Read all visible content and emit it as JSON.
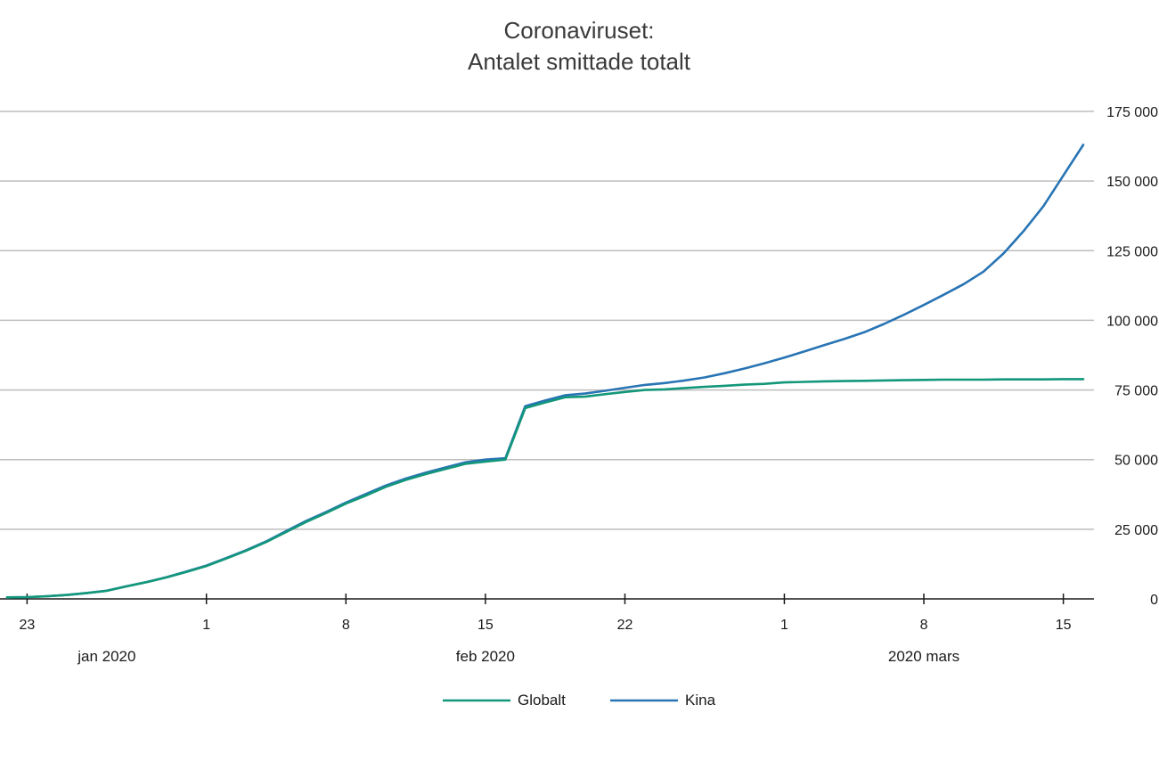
{
  "chart_data": {
    "type": "line",
    "title": [
      "Coronaviruset:",
      "Antalet smittade totalt"
    ],
    "ylim": [
      0,
      175000
    ],
    "yticks": [
      {
        "value": 0,
        "label": "0"
      },
      {
        "value": 25000,
        "label": "25 000"
      },
      {
        "value": 50000,
        "label": "50 000"
      },
      {
        "value": 75000,
        "label": "75 000"
      },
      {
        "value": 100000,
        "label": "100 000"
      },
      {
        "value": 125000,
        "label": "125 000"
      },
      {
        "value": 150000,
        "label": "150 000"
      },
      {
        "value": 175000,
        "label": "175 000"
      }
    ],
    "grid": true,
    "x_range": [
      "2020-01-22",
      "2020-03-16"
    ],
    "xticks": [
      {
        "date": "2020-01-23",
        "label": "23"
      },
      {
        "date": "2020-02-01",
        "label": "1"
      },
      {
        "date": "2020-02-08",
        "label": "8"
      },
      {
        "date": "2020-02-15",
        "label": "15"
      },
      {
        "date": "2020-02-22",
        "label": "22"
      },
      {
        "date": "2020-03-01",
        "label": "1"
      },
      {
        "date": "2020-03-08",
        "label": "8"
      },
      {
        "date": "2020-03-15",
        "label": "15"
      }
    ],
    "month_labels": [
      {
        "date": "2020-01-27",
        "label": "jan 2020"
      },
      {
        "date": "2020-02-15",
        "label": "feb 2020"
      },
      {
        "date": "2020-03-08",
        "label": "2020 mars"
      }
    ],
    "legend_placement": "bottom-center",
    "x": [
      "2020-01-22",
      "2020-01-23",
      "2020-01-24",
      "2020-01-25",
      "2020-01-26",
      "2020-01-27",
      "2020-01-28",
      "2020-01-29",
      "2020-01-30",
      "2020-01-31",
      "2020-02-01",
      "2020-02-02",
      "2020-02-03",
      "2020-02-04",
      "2020-02-05",
      "2020-02-06",
      "2020-02-07",
      "2020-02-08",
      "2020-02-09",
      "2020-02-10",
      "2020-02-11",
      "2020-02-12",
      "2020-02-13",
      "2020-02-14",
      "2020-02-15",
      "2020-02-16",
      "2020-02-17",
      "2020-02-18",
      "2020-02-19",
      "2020-02-20",
      "2020-02-21",
      "2020-02-22",
      "2020-02-23",
      "2020-02-24",
      "2020-02-25",
      "2020-02-26",
      "2020-02-27",
      "2020-02-28",
      "2020-02-29",
      "2020-03-01",
      "2020-03-02",
      "2020-03-03",
      "2020-03-04",
      "2020-03-05",
      "2020-03-06",
      "2020-03-07",
      "2020-03-08",
      "2020-03-09",
      "2020-03-10",
      "2020-03-11",
      "2020-03-12",
      "2020-03-13",
      "2020-03-14",
      "2020-03-15",
      "2020-03-16"
    ],
    "series": [
      {
        "name": "Globalt",
        "color": "#13977a",
        "values": [
          540,
          640,
          920,
          1400,
          2100,
          2900,
          4500,
          6000,
          7700,
          9700,
          11800,
          14500,
          17300,
          20400,
          24000,
          27600,
          30800,
          34200,
          37100,
          40200,
          42700,
          44800,
          46600,
          48500,
          49300,
          50000,
          68500,
          70500,
          72400,
          72600,
          73500,
          74300,
          75000,
          75200,
          75700,
          76100,
          76500,
          76900,
          77200,
          77700,
          77900,
          78100,
          78200,
          78300,
          78400,
          78500,
          78600,
          78700,
          78700,
          78700,
          78800,
          78800,
          78800,
          78900,
          78900
        ]
      },
      {
        "name": "Kina",
        "color": "#2874b4",
        "values": [
          550,
          650,
          950,
          1420,
          2120,
          2930,
          4540,
          6060,
          7800,
          9830,
          11950,
          14700,
          17500,
          20650,
          24350,
          28000,
          31200,
          34600,
          37650,
          40700,
          43200,
          45300,
          47200,
          49000,
          50000,
          50500,
          69200,
          71200,
          73100,
          73700,
          74700,
          75800,
          76800,
          77500,
          78400,
          79500,
          81000,
          82700,
          84600,
          86600,
          88800,
          91100,
          93300,
          95700,
          98700,
          102000,
          105500,
          109200,
          113000,
          117500,
          124000,
          132000,
          141000,
          152000,
          163000
        ]
      }
    ]
  }
}
